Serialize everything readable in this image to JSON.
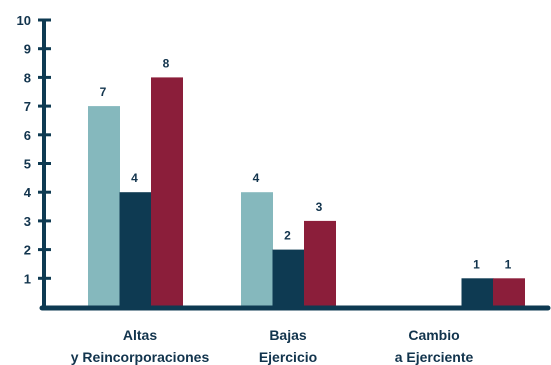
{
  "chart_data": {
    "type": "bar",
    "categories": [
      [
        "Altas",
        "y Reincorporaciones"
      ],
      [
        "Bajas",
        "Ejercicio"
      ],
      [
        "Cambio",
        "a Ejerciente"
      ]
    ],
    "series": [
      {
        "color": "#85b8bd",
        "values": [
          7,
          4,
          null
        ]
      },
      {
        "color": "#0e3a52",
        "values": [
          4,
          2,
          1
        ]
      },
      {
        "color": "#8b1e3a",
        "values": [
          8,
          3,
          1
        ]
      }
    ],
    "ylim": [
      0,
      10
    ],
    "yticks": [
      1,
      2,
      3,
      4,
      5,
      6,
      7,
      8,
      9,
      10
    ],
    "grid": false,
    "axis_color": "#0e3a52"
  }
}
